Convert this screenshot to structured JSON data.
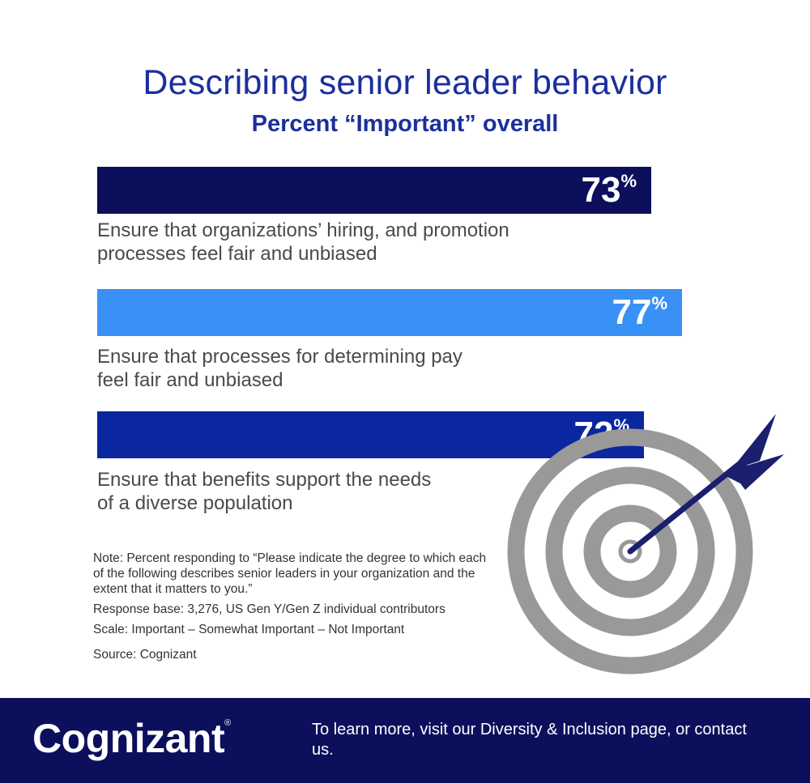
{
  "chart_data": {
    "type": "bar",
    "orientation": "horizontal",
    "title": "Describing senior leader behavior",
    "subtitle": "Percent “Important” overall",
    "categories": [
      "Ensure that organizations’ hiring, and promotion processes feel fair and unbiased",
      "Ensure that processes for determining pay feel fair and unbiased",
      "Ensure that benefits support the needs of a diverse population"
    ],
    "values": [
      73,
      77,
      72
    ],
    "value_suffix": "%",
    "colors": [
      "#0c0f5c",
      "#3a91f5",
      "#0a27a0"
    ],
    "xlim": [
      0,
      100
    ],
    "grid": false,
    "legend": "none"
  },
  "category_lines": [
    [
      "Ensure that organizations’ hiring, and promotion",
      "processes feel fair and unbiased"
    ],
    [
      "Ensure that processes for determining pay",
      "feel fair and unbiased"
    ],
    [
      "Ensure that benefits support the needs",
      "of a diverse population"
    ]
  ],
  "notes": {
    "note": "Note: Percent responding to “Please indicate the degree to which each of the following describes senior leaders in your organization and the extent that it matters to you.”",
    "base": "Response base: 3,276, US Gen Y/Gen Z individual contributors",
    "scale": "Scale: Important – Somewhat Important – Not Important",
    "source": "Source: Cognizant"
  },
  "footer": {
    "logo": "Cognizant",
    "logo_mark": "®",
    "cta": "To learn more, visit our Diversity & Inclusion page, or contact us.",
    "background": "#0c0f5c"
  },
  "decoration": {
    "icon": "target-with-dart-icon",
    "target_color": "#999999",
    "dart_color": "#1a1f6e"
  }
}
